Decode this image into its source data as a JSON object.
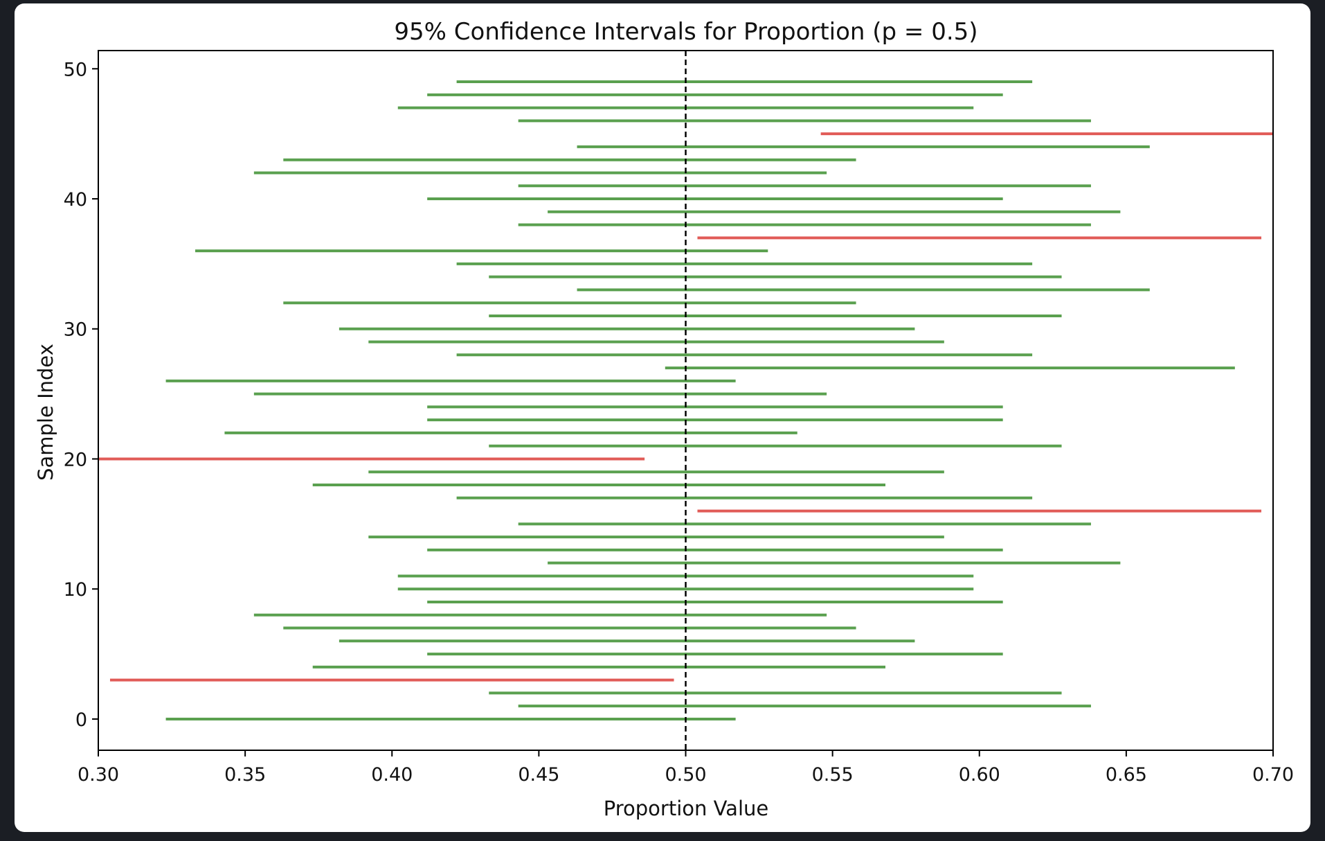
{
  "chart_data": {
    "type": "interval",
    "title": "95% Confidence Intervals for Proportion (p = 0.5)",
    "xlabel": "Proportion Value",
    "ylabel": "Sample Index",
    "xlim": [
      0.3,
      0.7
    ],
    "ylim": [
      -2.4,
      51.4
    ],
    "xticks": [
      "0.30",
      "0.35",
      "0.40",
      "0.45",
      "0.50",
      "0.55",
      "0.60",
      "0.65",
      "0.70"
    ],
    "yticks": [
      "0",
      "10",
      "20",
      "30",
      "40",
      "50"
    ],
    "reference_line": {
      "value": 0.5,
      "style": "dashed",
      "color": "#000000"
    },
    "colors": {
      "contains_p": "#5aa04f",
      "misses_p": "#e15b57"
    },
    "intervals": [
      {
        "index": 0,
        "low": 0.323,
        "high": 0.517,
        "contains_p": true
      },
      {
        "index": 1,
        "low": 0.443,
        "high": 0.638,
        "contains_p": true
      },
      {
        "index": 2,
        "low": 0.433,
        "high": 0.628,
        "contains_p": true
      },
      {
        "index": 3,
        "low": 0.304,
        "high": 0.496,
        "contains_p": false
      },
      {
        "index": 4,
        "low": 0.373,
        "high": 0.568,
        "contains_p": true
      },
      {
        "index": 5,
        "low": 0.412,
        "high": 0.608,
        "contains_p": true
      },
      {
        "index": 6,
        "low": 0.382,
        "high": 0.578,
        "contains_p": true
      },
      {
        "index": 7,
        "low": 0.363,
        "high": 0.558,
        "contains_p": true
      },
      {
        "index": 8,
        "low": 0.353,
        "high": 0.548,
        "contains_p": true
      },
      {
        "index": 9,
        "low": 0.412,
        "high": 0.608,
        "contains_p": true
      },
      {
        "index": 10,
        "low": 0.402,
        "high": 0.598,
        "contains_p": true
      },
      {
        "index": 11,
        "low": 0.402,
        "high": 0.598,
        "contains_p": true
      },
      {
        "index": 12,
        "low": 0.453,
        "high": 0.648,
        "contains_p": true
      },
      {
        "index": 13,
        "low": 0.412,
        "high": 0.608,
        "contains_p": true
      },
      {
        "index": 14,
        "low": 0.392,
        "high": 0.588,
        "contains_p": true
      },
      {
        "index": 15,
        "low": 0.443,
        "high": 0.638,
        "contains_p": true
      },
      {
        "index": 16,
        "low": 0.504,
        "high": 0.696,
        "contains_p": false
      },
      {
        "index": 17,
        "low": 0.422,
        "high": 0.618,
        "contains_p": true
      },
      {
        "index": 18,
        "low": 0.373,
        "high": 0.568,
        "contains_p": true
      },
      {
        "index": 19,
        "low": 0.392,
        "high": 0.588,
        "contains_p": true
      },
      {
        "index": 20,
        "low": 0.3,
        "high": 0.486,
        "contains_p": false
      },
      {
        "index": 21,
        "low": 0.433,
        "high": 0.628,
        "contains_p": true
      },
      {
        "index": 22,
        "low": 0.343,
        "high": 0.538,
        "contains_p": true
      },
      {
        "index": 23,
        "low": 0.412,
        "high": 0.608,
        "contains_p": true
      },
      {
        "index": 24,
        "low": 0.412,
        "high": 0.608,
        "contains_p": true
      },
      {
        "index": 25,
        "low": 0.353,
        "high": 0.548,
        "contains_p": true
      },
      {
        "index": 26,
        "low": 0.323,
        "high": 0.517,
        "contains_p": true
      },
      {
        "index": 27,
        "low": 0.493,
        "high": 0.687,
        "contains_p": true
      },
      {
        "index": 28,
        "low": 0.422,
        "high": 0.618,
        "contains_p": true
      },
      {
        "index": 29,
        "low": 0.392,
        "high": 0.588,
        "contains_p": true
      },
      {
        "index": 30,
        "low": 0.382,
        "high": 0.578,
        "contains_p": true
      },
      {
        "index": 31,
        "low": 0.433,
        "high": 0.628,
        "contains_p": true
      },
      {
        "index": 32,
        "low": 0.363,
        "high": 0.558,
        "contains_p": true
      },
      {
        "index": 33,
        "low": 0.463,
        "high": 0.658,
        "contains_p": true
      },
      {
        "index": 34,
        "low": 0.433,
        "high": 0.628,
        "contains_p": true
      },
      {
        "index": 35,
        "low": 0.422,
        "high": 0.618,
        "contains_p": true
      },
      {
        "index": 36,
        "low": 0.333,
        "high": 0.528,
        "contains_p": true
      },
      {
        "index": 37,
        "low": 0.504,
        "high": 0.696,
        "contains_p": false
      },
      {
        "index": 38,
        "low": 0.443,
        "high": 0.638,
        "contains_p": true
      },
      {
        "index": 39,
        "low": 0.453,
        "high": 0.648,
        "contains_p": true
      },
      {
        "index": 40,
        "low": 0.412,
        "high": 0.608,
        "contains_p": true
      },
      {
        "index": 41,
        "low": 0.443,
        "high": 0.638,
        "contains_p": true
      },
      {
        "index": 42,
        "low": 0.353,
        "high": 0.548,
        "contains_p": true
      },
      {
        "index": 43,
        "low": 0.363,
        "high": 0.558,
        "contains_p": true
      },
      {
        "index": 44,
        "low": 0.463,
        "high": 0.658,
        "contains_p": true
      },
      {
        "index": 45,
        "low": 0.546,
        "high": 0.7,
        "contains_p": false
      },
      {
        "index": 46,
        "low": 0.443,
        "high": 0.638,
        "contains_p": true
      },
      {
        "index": 47,
        "low": 0.402,
        "high": 0.598,
        "contains_p": true
      },
      {
        "index": 48,
        "low": 0.412,
        "high": 0.608,
        "contains_p": true
      },
      {
        "index": 49,
        "low": 0.422,
        "high": 0.618,
        "contains_p": true
      }
    ]
  }
}
